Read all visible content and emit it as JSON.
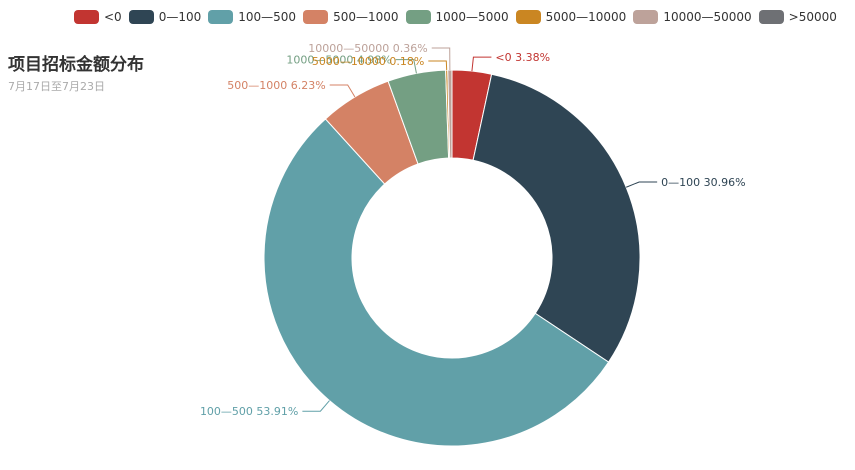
{
  "chart_data": {
    "type": "pie",
    "title": "项目招标金额分布",
    "subtitle": "7月17日至7月23日",
    "donut": true,
    "legend_position": "top",
    "series": [
      {
        "name": "<0",
        "value": 3.38,
        "color": "#c23531",
        "label": "<0 3.38%"
      },
      {
        "name": "0—100",
        "value": 30.96,
        "color": "#2f4554",
        "label": "0—100 30.96%"
      },
      {
        "name": "100—500",
        "value": 53.91,
        "color": "#61a0a8",
        "label": "100—500 53.91%"
      },
      {
        "name": "500—1000",
        "value": 6.23,
        "color": "#d48265",
        "label": "500—1000 6.23%"
      },
      {
        "name": "1000—5000",
        "value": 4.98,
        "color": "#749f83",
        "label": "1000—5000 4.98%"
      },
      {
        "name": "5000—10000",
        "value": 0.18,
        "color": "#ca8622",
        "label": "5000—10000 0.18%"
      },
      {
        "name": "10000—50000",
        "value": 0.36,
        "color": "#bda29a",
        "label": "10000—50000 0.36%"
      },
      {
        "name": ">50000",
        "value": 0,
        "color": "#6e7074",
        "label": ""
      }
    ]
  }
}
